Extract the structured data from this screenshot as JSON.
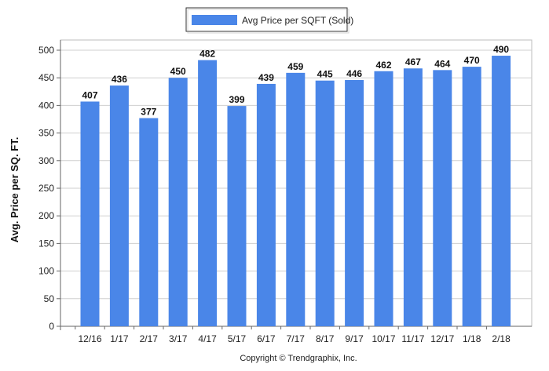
{
  "chart_data": {
    "type": "bar",
    "title": "",
    "xlabel": "",
    "ylabel": "Avg. Price per SQ. FT.",
    "categories": [
      "12/16",
      "1/17",
      "2/17",
      "3/17",
      "4/17",
      "5/17",
      "6/17",
      "7/17",
      "8/17",
      "9/17",
      "10/17",
      "11/17",
      "12/17",
      "1/18",
      "2/18"
    ],
    "series": [
      {
        "name": "Avg Price per SQFT (Sold)",
        "color": "#4a86e8",
        "values": [
          407,
          436,
          377,
          450,
          482,
          399,
          439,
          459,
          445,
          446,
          462,
          467,
          464,
          470,
          490
        ]
      }
    ],
    "ylim": [
      0,
      500
    ],
    "yticks": [
      0,
      50,
      100,
      150,
      200,
      250,
      300,
      350,
      400,
      450,
      500
    ],
    "grid": true,
    "legend_position": "top-center"
  },
  "footer": {
    "copyright": "Copyright © Trendgraphix, Inc."
  }
}
